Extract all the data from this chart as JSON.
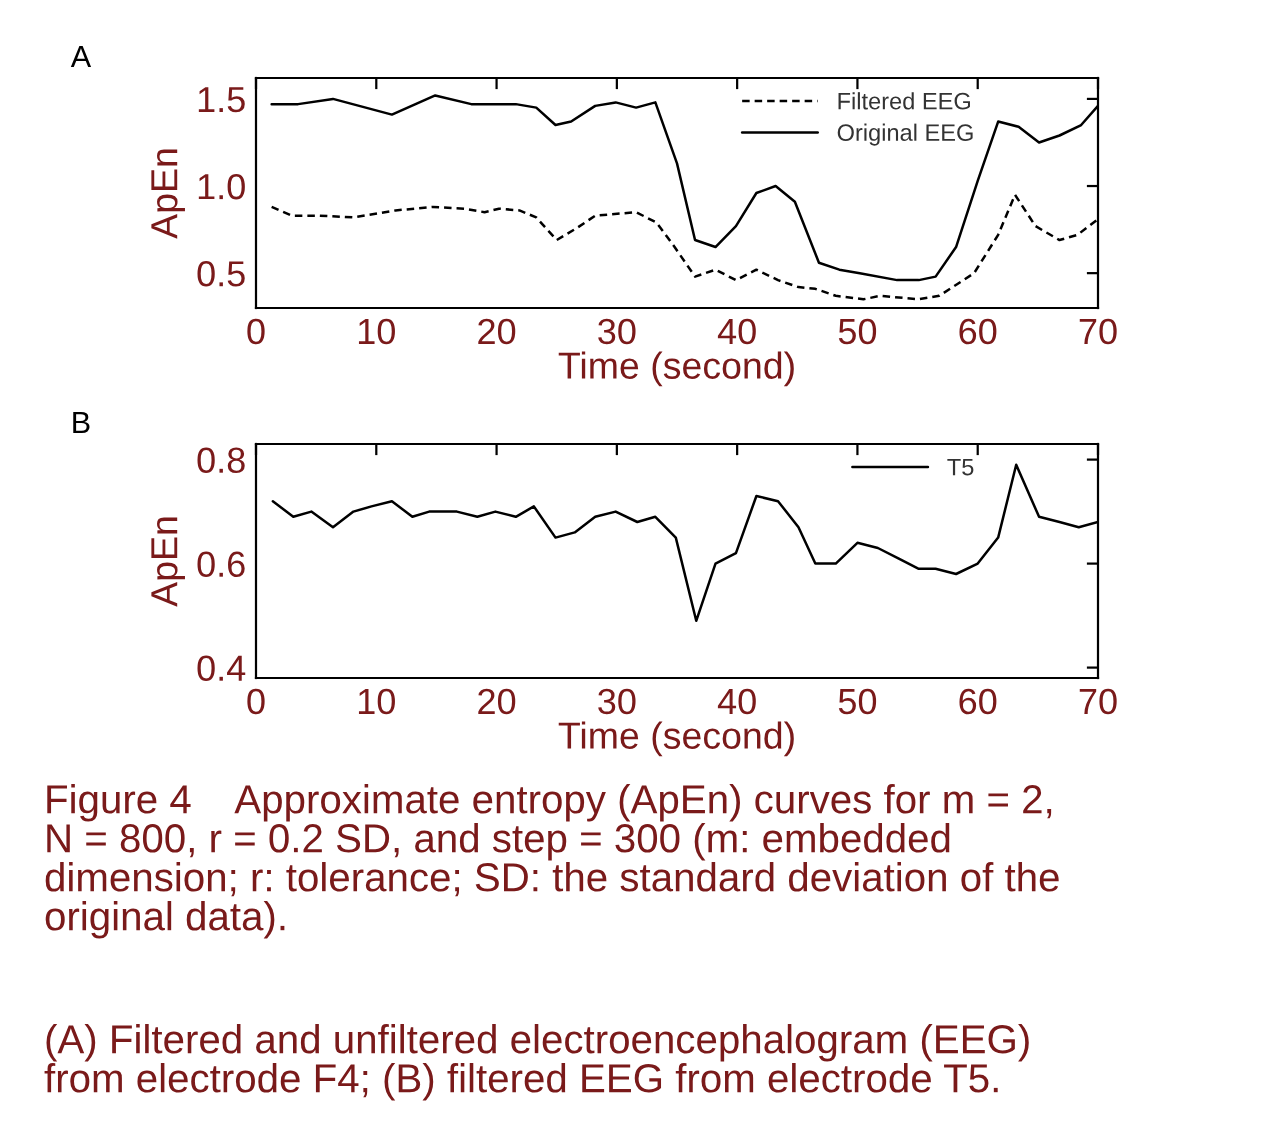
{
  "chart_data": [
    {
      "type": "line",
      "xlabel": "Time (second)",
      "ylabel": "ApEn",
      "xlim": [
        0,
        70
      ],
      "xticks": [
        0,
        10,
        20,
        30,
        40,
        50,
        60,
        70
      ],
      "ylim": [
        0.3,
        1.62
      ],
      "yticks": [
        0.5,
        {
          "value": 1.0,
          "label": "1.0"
        },
        1.5
      ],
      "grid": false,
      "legend": "top right",
      "marker": "none",
      "annotations": [
        "A"
      ],
      "series": [
        {
          "name": "Filtered EEG",
          "color": "#000000",
          "line_style": "dashed",
          "x": [
            1.3,
            3,
            5.3,
            8.1,
            11.6,
            14.7,
            17.3,
            19,
            20.2,
            21.9,
            23.3,
            25,
            26.7,
            28.2,
            31.6,
            33.3,
            34.8,
            36.5,
            38.2,
            39.9,
            41.6,
            43.4,
            45.1,
            46.5,
            48.2,
            50.5,
            51.9,
            55.1,
            56.8,
            59.7,
            61.7,
            63.1,
            64.8,
            66.8,
            68.3,
            70
          ],
          "values": [
            0.88,
            0.83,
            0.83,
            0.82,
            0.86,
            0.88,
            0.87,
            0.85,
            0.87,
            0.86,
            0.82,
            0.69,
            0.76,
            0.83,
            0.85,
            0.79,
            0.65,
            0.48,
            0.52,
            0.46,
            0.52,
            0.46,
            0.42,
            0.41,
            0.37,
            0.35,
            0.37,
            0.35,
            0.37,
            0.5,
            0.72,
            0.95,
            0.77,
            0.69,
            0.72,
            0.81
          ]
        },
        {
          "name": "Original EEG",
          "color": "#000000",
          "line_style": "solid",
          "x": [
            1.3,
            3.5,
            6.4,
            11.3,
            14.9,
            17.9,
            21.6,
            23.3,
            24.9,
            26.2,
            28.2,
            29.9,
            31.6,
            33.2,
            35,
            36.5,
            38.2,
            39.9,
            41.6,
            43.2,
            44.8,
            46.8,
            48.5,
            50.2,
            53.3,
            55.1,
            56.5,
            58.2,
            60,
            61.7,
            63.4,
            65.1,
            66.8,
            68.6,
            70
          ],
          "values": [
            1.47,
            1.47,
            1.5,
            1.41,
            1.52,
            1.47,
            1.47,
            1.45,
            1.35,
            1.37,
            1.46,
            1.48,
            1.45,
            1.48,
            1.13,
            0.69,
            0.65,
            0.77,
            0.96,
            1.0,
            0.91,
            0.56,
            0.52,
            0.5,
            0.46,
            0.46,
            0.48,
            0.65,
            1.03,
            1.37,
            1.34,
            1.25,
            1.29,
            1.35,
            1.46
          ]
        }
      ]
    },
    {
      "type": "line",
      "xlabel": "Time (second)",
      "ylabel": "ApEn",
      "xlim": [
        0,
        70
      ],
      "xticks": [
        0,
        10,
        20,
        30,
        40,
        50,
        60,
        70
      ],
      "ylim": [
        0.38,
        0.83
      ],
      "yticks": [
        0.4,
        0.6,
        0.8
      ],
      "grid": false,
      "legend": "top right",
      "marker": "none",
      "annotations": [
        "B",
        "Figure 4    Approximate entropy (ApEn) curves for m = 2,\nN = 800, r = 0.2 SD, and step = 300 (m: embedded\ndimension; r: tolerance; SD: the standard deviation of the\noriginal data).",
        "(A) Filtered and unfiltered electroencephalogram (EEG)\nfrom electrode F4; (B) filtered EEG from electrode T5."
      ],
      "series": [
        {
          "name": "T5",
          "color": "#000000",
          "line_style": "solid",
          "x": [
            1.4,
            3.1,
            4.6,
            6.4,
            8.1,
            9.6,
            11.3,
            13,
            14.4,
            16.7,
            18.4,
            19.9,
            21.6,
            23.1,
            24.9,
            26.5,
            28.2,
            29.9,
            31.7,
            33.2,
            34.9,
            36.6,
            38.2,
            39.9,
            41.6,
            43.4,
            45.1,
            46.5,
            48.2,
            50,
            51.7,
            53.4,
            55.1,
            56.5,
            58.2,
            60,
            61.7,
            63.2,
            65.1,
            66.8,
            68.4,
            70
          ],
          "values": [
            0.72,
            0.69,
            0.7,
            0.67,
            0.7,
            0.71,
            0.72,
            0.69,
            0.7,
            0.7,
            0.69,
            0.7,
            0.69,
            0.71,
            0.65,
            0.66,
            0.69,
            0.7,
            0.68,
            0.69,
            0.65,
            0.49,
            0.6,
            0.62,
            0.73,
            0.72,
            0.67,
            0.6,
            0.6,
            0.64,
            0.63,
            0.61,
            0.59,
            0.59,
            0.58,
            0.6,
            0.65,
            0.79,
            0.69,
            0.68,
            0.67,
            0.68
          ]
        }
      ]
    }
  ]
}
